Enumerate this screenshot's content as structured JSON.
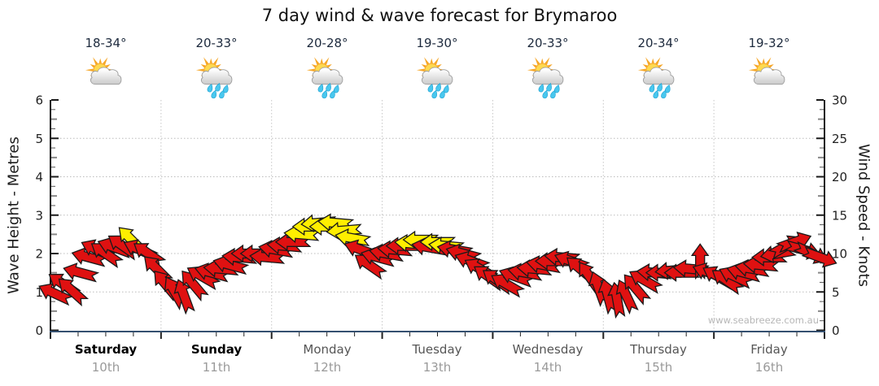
{
  "title": "7 day wind & wave forecast for Brymaroo",
  "watermark": "www.seabreeze.com.au",
  "axes": {
    "left": {
      "label": "Wave Height - Metres",
      "ticks": [
        0,
        1,
        2,
        3,
        4,
        5,
        6
      ],
      "max": 6
    },
    "right": {
      "label": "Wind Speed - Knots",
      "ticks": [
        0,
        5,
        10,
        15,
        20,
        25,
        30
      ],
      "max": 30
    }
  },
  "days": [
    {
      "name": "Saturday",
      "date": "10th",
      "temp": "18-34°",
      "icon": "sun-cloud",
      "weekend": true
    },
    {
      "name": "Sunday",
      "date": "11th",
      "temp": "20-33°",
      "icon": "sun-cloud-rain",
      "weekend": true
    },
    {
      "name": "Monday",
      "date": "12th",
      "temp": "20-28°",
      "icon": "sun-cloud-rain",
      "weekend": false
    },
    {
      "name": "Tuesday",
      "date": "13th",
      "temp": "19-30°",
      "icon": "sun-cloud-rain",
      "weekend": false
    },
    {
      "name": "Wednesday",
      "date": "14th",
      "temp": "20-33°",
      "icon": "sun-cloud-rain",
      "weekend": false
    },
    {
      "name": "Thursday",
      "date": "15th",
      "temp": "20-34°",
      "icon": "sun-cloud-rain",
      "weekend": false
    },
    {
      "name": "Friday",
      "date": "16th",
      "temp": "19-32°",
      "icon": "sun-cloud",
      "weekend": false
    }
  ],
  "colors": {
    "arrow_red": "#df1111",
    "arrow_yellow": "#ffee00",
    "arrow_outline": "#1a1a1a",
    "axis": "#1a1a1a",
    "bottom_axis": "#355070",
    "grid": "#bcbcbc",
    "tick_label": "#222222",
    "weekday": "#555555",
    "weekend": "#000000",
    "date": "#9a9a9a",
    "temp": "#1d2a3d",
    "watermark": "#b7b7b7"
  },
  "chart_data": {
    "type": "wind-arrows",
    "title": "7 day wind & wave forecast for Brymaroo",
    "ylabel_left": "Wave Height - Metres",
    "ylabel_right": "Wind Speed - Knots",
    "ylim_knots": [
      0,
      30
    ],
    "ylim_metres": [
      0,
      6
    ],
    "grid": "dotted horizontal at 1-5 m, dotted vertical at day boundaries",
    "point_format": "[wind_knots, arrow_direction_deg_cw_0=east, optional 'y' = yellow arrow]",
    "series": [
      {
        "day": "Saturday",
        "points": [
          [
            4.8,
            205
          ],
          [
            6,
            215
          ],
          [
            5.2,
            222
          ],
          [
            7.5,
            195
          ],
          [
            9.5,
            195
          ],
          [
            10.5,
            205
          ],
          [
            10,
            215
          ],
          [
            10.8,
            200
          ],
          [
            11,
            215
          ],
          [
            11.8,
            225,
            "y"
          ],
          [
            10.5,
            205
          ],
          [
            10,
            215
          ],
          [
            8,
            225
          ]
        ]
      },
      {
        "day": "Sunday",
        "points": [
          [
            6,
            230
          ],
          [
            5,
            240
          ],
          [
            4.5,
            250
          ],
          [
            6,
            230
          ],
          [
            7,
            210
          ],
          [
            7.5,
            195
          ],
          [
            8,
            185
          ],
          [
            8.5,
            195
          ],
          [
            9.5,
            185
          ],
          [
            10,
            180
          ],
          [
            10,
            180
          ],
          [
            9.5,
            185
          ]
        ]
      },
      {
        "day": "Monday",
        "points": [
          [
            10.5,
            190
          ],
          [
            11,
            185
          ],
          [
            11.5,
            180
          ],
          [
            12.5,
            185,
            "y"
          ],
          [
            13.5,
            180,
            "y"
          ],
          [
            14,
            175,
            "y"
          ],
          [
            13.5,
            180,
            "y"
          ],
          [
            14,
            185,
            "y"
          ],
          [
            13,
            175,
            "y"
          ],
          [
            12,
            190,
            "y"
          ],
          [
            10.5,
            200
          ],
          [
            8.5,
            215
          ],
          [
            9.5,
            195
          ]
        ]
      },
      {
        "day": "Tuesday",
        "points": [
          [
            10,
            190
          ],
          [
            10.5,
            185
          ],
          [
            11,
            180
          ],
          [
            11.3,
            185,
            "y"
          ],
          [
            11.8,
            180,
            "y"
          ],
          [
            10.8,
            190
          ],
          [
            11.5,
            180,
            "y"
          ],
          [
            11,
            185,
            "y"
          ],
          [
            10.5,
            190
          ],
          [
            10,
            195
          ],
          [
            9,
            200
          ],
          [
            8,
            210
          ],
          [
            7,
            215
          ]
        ]
      },
      {
        "day": "Wednesday",
        "points": [
          [
            6.5,
            215
          ],
          [
            6,
            210
          ],
          [
            7,
            200
          ],
          [
            7.5,
            190
          ],
          [
            8,
            185
          ],
          [
            8.5,
            190
          ],
          [
            9,
            180
          ],
          [
            9.5,
            185
          ],
          [
            9,
            200
          ],
          [
            8,
            220
          ],
          [
            7,
            235
          ],
          [
            5.5,
            250
          ]
        ]
      },
      {
        "day": "Thursday",
        "points": [
          [
            4.5,
            255
          ],
          [
            4,
            260
          ],
          [
            4.5,
            245
          ],
          [
            5.5,
            230
          ],
          [
            6.5,
            210
          ],
          [
            7.5,
            185
          ],
          [
            7.5,
            180
          ],
          [
            7.8,
            175
          ],
          [
            7.5,
            180
          ],
          [
            8,
            185
          ],
          [
            9,
            270
          ],
          [
            7.5,
            200
          ]
        ]
      },
      {
        "day": "Friday",
        "points": [
          [
            7,
            210
          ],
          [
            6.5,
            215
          ],
          [
            7,
            205
          ],
          [
            7.5,
            195
          ],
          [
            8,
            190
          ],
          [
            8.5,
            185
          ],
          [
            9.5,
            180
          ],
          [
            10,
            170
          ],
          [
            11,
            330
          ],
          [
            11.5,
            340
          ],
          [
            10.5,
            15
          ],
          [
            10,
            25
          ],
          [
            9.5,
            20
          ]
        ]
      }
    ]
  }
}
